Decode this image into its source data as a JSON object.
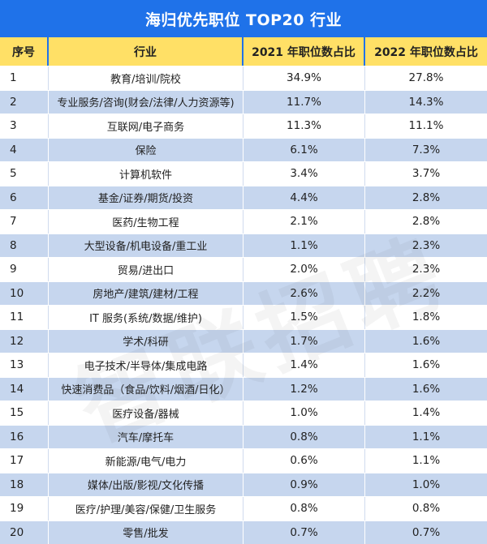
{
  "title": "海归优先职位 TOP20 行业",
  "headers": {
    "no": "序号",
    "industry": "行业",
    "y2021": "2021 年职位数占比",
    "y2022": "2022 年职位数占比"
  },
  "rows": [
    {
      "no": "1",
      "industry": "教育/培训/院校",
      "y2021": "34.9%",
      "y2022": "27.8%"
    },
    {
      "no": "2",
      "industry": "专业服务/咨询(财会/法律/人力资源等)",
      "y2021": "11.7%",
      "y2022": "14.3%"
    },
    {
      "no": "3",
      "industry": "互联网/电子商务",
      "y2021": "11.3%",
      "y2022": "11.1%"
    },
    {
      "no": "4",
      "industry": "保险",
      "y2021": "6.1%",
      "y2022": "7.3%"
    },
    {
      "no": "5",
      "industry": "计算机软件",
      "y2021": "3.4%",
      "y2022": "3.7%"
    },
    {
      "no": "6",
      "industry": "基金/证券/期货/投资",
      "y2021": "4.4%",
      "y2022": "2.8%"
    },
    {
      "no": "7",
      "industry": "医药/生物工程",
      "y2021": "2.1%",
      "y2022": "2.8%"
    },
    {
      "no": "8",
      "industry": "大型设备/机电设备/重工业",
      "y2021": "1.1%",
      "y2022": "2.3%"
    },
    {
      "no": "9",
      "industry": "贸易/进出口",
      "y2021": "2.0%",
      "y2022": "2.3%"
    },
    {
      "no": "10",
      "industry": "房地产/建筑/建材/工程",
      "y2021": "2.6%",
      "y2022": "2.2%"
    },
    {
      "no": "11",
      "industry": "IT 服务(系统/数据/维护)",
      "y2021": "1.5%",
      "y2022": "1.8%"
    },
    {
      "no": "12",
      "industry": "学术/科研",
      "y2021": "1.7%",
      "y2022": "1.6%"
    },
    {
      "no": "13",
      "industry": "电子技术/半导体/集成电路",
      "y2021": "1.4%",
      "y2022": "1.6%"
    },
    {
      "no": "14",
      "industry": "快速消费品（食品/饮料/烟酒/日化）",
      "y2021": "1.2%",
      "y2022": "1.6%"
    },
    {
      "no": "15",
      "industry": "医疗设备/器械",
      "y2021": "1.0%",
      "y2022": "1.4%"
    },
    {
      "no": "16",
      "industry": "汽车/摩托车",
      "y2021": "0.8%",
      "y2022": "1.1%"
    },
    {
      "no": "17",
      "industry": "新能源/电气/电力",
      "y2021": "0.6%",
      "y2022": "1.1%"
    },
    {
      "no": "18",
      "industry": "媒体/出版/影视/文化传播",
      "y2021": "0.9%",
      "y2022": "1.0%"
    },
    {
      "no": "19",
      "industry": "医疗/护理/美容/保健/卫生服务",
      "y2021": "0.8%",
      "y2022": "0.8%"
    },
    {
      "no": "20",
      "industry": "零售/批发",
      "y2021": "0.7%",
      "y2022": "0.7%"
    }
  ],
  "colors": {
    "header_bg": "#1F72E9",
    "column_header_bg": "#FFE066",
    "stripe": "#C6D6EE"
  }
}
